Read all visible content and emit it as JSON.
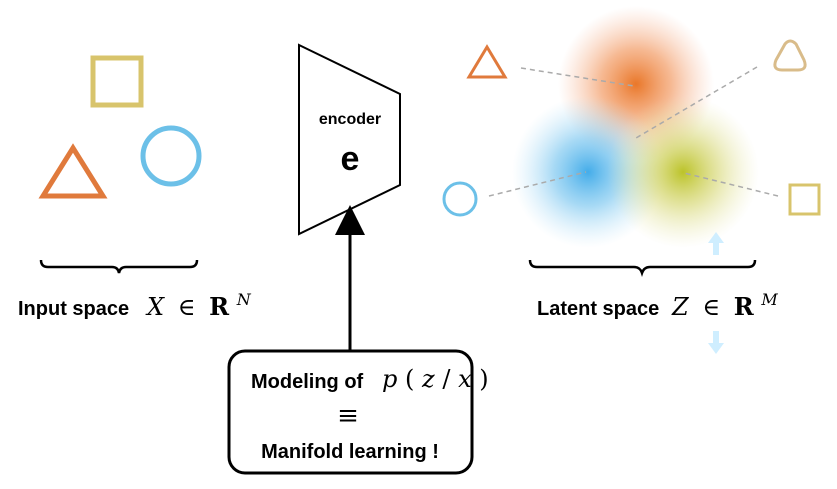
{
  "input_space": {
    "label": "Input space",
    "math_var": "X",
    "math_in": "∈",
    "math_R": "R",
    "math_exp": "N"
  },
  "encoder": {
    "label": "encoder",
    "symbol": "e"
  },
  "latent_space": {
    "label": "Latent space",
    "math_var": "Z",
    "math_in": "∈",
    "math_R": "R",
    "math_exp": "M"
  },
  "modeling_box": {
    "line1": "Modeling of",
    "math_p": "p",
    "math_open": "(",
    "math_z": "z",
    "math_slash": "/",
    "math_x": "x",
    "math_close": ")",
    "equiv": "≡",
    "line3": "Manifold learning !"
  },
  "colors": {
    "orange": "#e07a3c",
    "blue": "#6cc0e8",
    "olive": "#c6c93a",
    "gold": "#d8c46c",
    "tan": "#d9bc8a",
    "light_blue": "#cfeeff",
    "black": "#000000"
  }
}
